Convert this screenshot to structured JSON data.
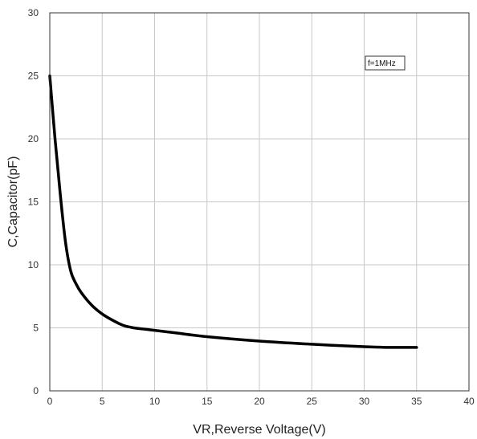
{
  "chart_data": {
    "type": "line",
    "title": "",
    "xlabel": "VR,Reverse Voltage(V)",
    "ylabel": "C,Capacitor(pF)",
    "xlim": [
      0,
      40
    ],
    "ylim": [
      0,
      30
    ],
    "xticks": [
      0,
      5,
      10,
      15,
      20,
      25,
      30,
      35,
      40
    ],
    "yticks": [
      0,
      5,
      10,
      15,
      20,
      25,
      30
    ],
    "grid": true,
    "legend": "none",
    "annotation": "f=1MHz",
    "annotation_position": "top-right",
    "line_color": "#000000",
    "grid_color": "#c8c8c8",
    "series": [
      {
        "x": [
          0,
          0.5,
          1,
          1.5,
          2,
          2.5,
          3,
          4,
          5,
          6,
          7,
          8,
          9,
          10,
          12,
          15,
          20,
          25,
          30,
          32,
          35
        ],
        "values": [
          25,
          20,
          15.6,
          11.8,
          9.5,
          8.5,
          7.8,
          6.8,
          6.1,
          5.6,
          5.2,
          5.0,
          4.9,
          4.8,
          4.6,
          4.3,
          3.95,
          3.7,
          3.5,
          3.45,
          3.45
        ]
      }
    ]
  }
}
